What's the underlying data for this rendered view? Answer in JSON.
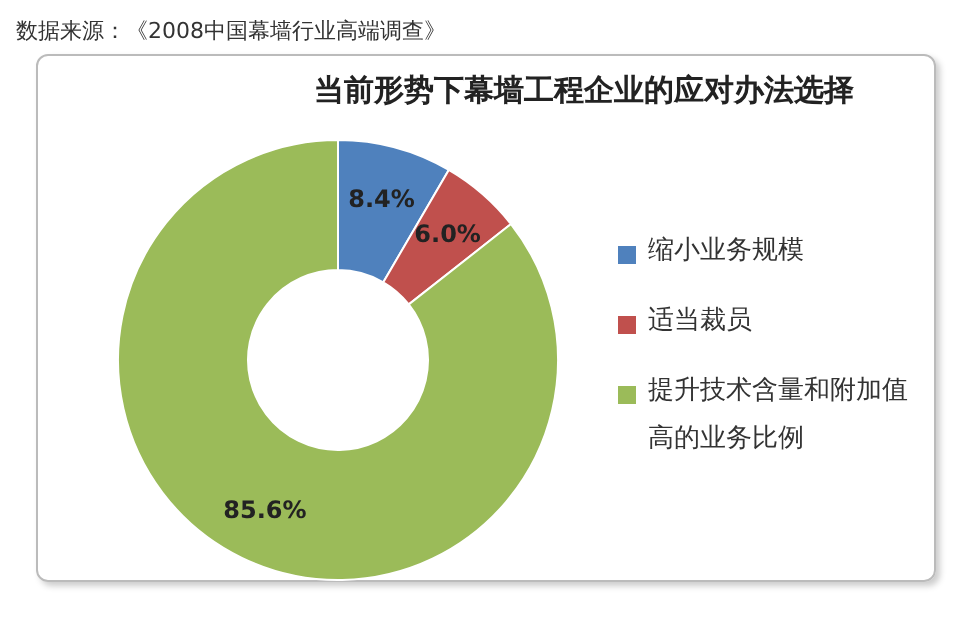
{
  "chart_data": {
    "type": "donut",
    "title": "当前形势下幕墙工程企业的应对办法选择",
    "categories": [
      "缩小业务规模",
      "适当裁员",
      "提升技术含量和附加值高的业务比例"
    ],
    "values": [
      8.4,
      6.0,
      85.6
    ],
    "colors": [
      "#4f81bd",
      "#c0504d",
      "#9bbb59"
    ],
    "value_labels": [
      "8.4%",
      "6.0%",
      "85.6%"
    ],
    "legend": "right",
    "annotations": [
      "数据来源：《2008中国幕墙行业高端调查》"
    ]
  }
}
